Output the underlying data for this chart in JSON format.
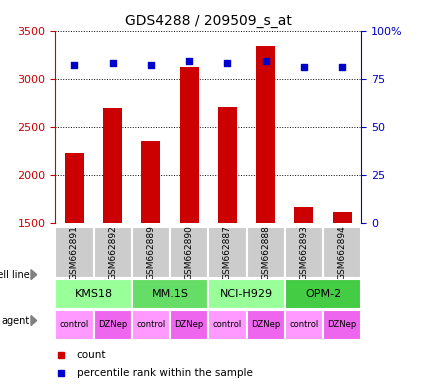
{
  "title": "GDS4288 / 209509_s_at",
  "samples": [
    "GSM662891",
    "GSM662892",
    "GSM662889",
    "GSM662890",
    "GSM662887",
    "GSM662888",
    "GSM662893",
    "GSM662894"
  ],
  "counts": [
    2230,
    2700,
    2350,
    3120,
    2710,
    3340,
    1660,
    1610
  ],
  "percentile_ranks": [
    82,
    83,
    82,
    84,
    83,
    84,
    81,
    81
  ],
  "bar_color": "#cc0000",
  "dot_color": "#0000cc",
  "ylim_left": [
    1500,
    3500
  ],
  "ylim_right": [
    0,
    100
  ],
  "yticks_left": [
    1500,
    2000,
    2500,
    3000,
    3500
  ],
  "yticks_right": [
    0,
    25,
    50,
    75,
    100
  ],
  "cell_lines": [
    "KMS18",
    "MM.1S",
    "NCI-H929",
    "OPM-2"
  ],
  "cell_line_colors": [
    "#99ff99",
    "#66dd66",
    "#99ff99",
    "#44cc44"
  ],
  "agent_colors": [
    "#ff99ff",
    "#ee66ee"
  ],
  "agents": [
    "control",
    "DZNep",
    "control",
    "DZNep",
    "control",
    "DZNep",
    "control",
    "DZNep"
  ],
  "bg_color": "#ffffff",
  "left_axis_color": "#cc0000",
  "right_axis_color": "#0000cc",
  "tick_label_bg": "#cccccc",
  "legend_count_color": "#cc0000",
  "legend_pct_color": "#0000cc"
}
